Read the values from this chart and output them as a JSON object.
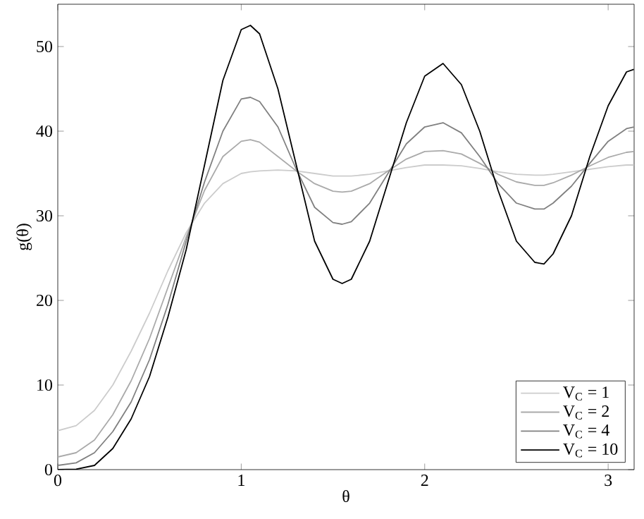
{
  "chart_data": {
    "type": "line",
    "xlabel": "θ",
    "ylabel": "g(θ)",
    "x": [
      0,
      0.1,
      0.2,
      0.3,
      0.4,
      0.5,
      0.6,
      0.7,
      0.8,
      0.9,
      1.0,
      1.05,
      1.1,
      1.2,
      1.3,
      1.4,
      1.5,
      1.55,
      1.6,
      1.7,
      1.8,
      1.9,
      2.0,
      2.1,
      2.2,
      2.3,
      2.4,
      2.5,
      2.6,
      2.65,
      2.7,
      2.8,
      2.9,
      3.0,
      3.1,
      3.14
    ],
    "xlim": [
      0,
      3.1416
    ],
    "ylim": [
      0,
      55
    ],
    "xticks": [
      0,
      1,
      2,
      3
    ],
    "yticks": [
      0,
      10,
      20,
      30,
      40,
      50
    ],
    "grid": false,
    "legend": "bottom right",
    "line_style": "solid",
    "marker": "none",
    "series": [
      {
        "name": "V$_{C}$ = 1",
        "color": "#cccccc",
        "values": [
          4.6,
          5.2,
          7,
          10,
          14,
          18.5,
          23.5,
          28,
          31.5,
          33.8,
          35,
          35.2,
          35.3,
          35.4,
          35.3,
          35,
          34.7,
          34.7,
          34.7,
          34.9,
          35.3,
          35.7,
          36,
          36,
          35.9,
          35.6,
          35.2,
          34.9,
          34.8,
          34.8,
          34.9,
          35.2,
          35.5,
          35.8,
          36,
          36
        ]
      },
      {
        "name": "V$_{C}$ = 2",
        "color": "#aaaaaa",
        "values": [
          1.5,
          2,
          3.5,
          6.5,
          10.5,
          15.5,
          21.5,
          27.5,
          33,
          37,
          38.8,
          39,
          38.7,
          37,
          35.3,
          33.8,
          32.9,
          32.8,
          32.9,
          33.8,
          35.3,
          36.7,
          37.6,
          37.7,
          37.3,
          36.2,
          34.9,
          34,
          33.6,
          33.6,
          33.9,
          34.8,
          35.9,
          36.9,
          37.5,
          37.6
        ]
      },
      {
        "name": "V$_{C}$ = 4",
        "color": "#808080",
        "values": [
          0.5,
          0.8,
          2,
          4.5,
          8,
          13,
          19.5,
          27,
          34,
          40,
          43.8,
          44,
          43.5,
          40.5,
          35.5,
          31,
          29.2,
          29,
          29.3,
          31.5,
          35,
          38.5,
          40.5,
          41,
          39.8,
          37,
          33.8,
          31.5,
          30.8,
          30.8,
          31.5,
          33.5,
          36.2,
          38.8,
          40.3,
          40.5
        ]
      },
      {
        "name": "V$_{C}$ = 10",
        "color": "#000000",
        "values": [
          0,
          0.05,
          0.5,
          2.5,
          6,
          11,
          18,
          26,
          36,
          46,
          52,
          52.5,
          51.5,
          45,
          36,
          27,
          22.5,
          22,
          22.5,
          27,
          34,
          41,
          46.5,
          48,
          45.5,
          40,
          33,
          27,
          24.5,
          24.3,
          25.5,
          30,
          37,
          43,
          47,
          47.3
        ]
      }
    ]
  }
}
